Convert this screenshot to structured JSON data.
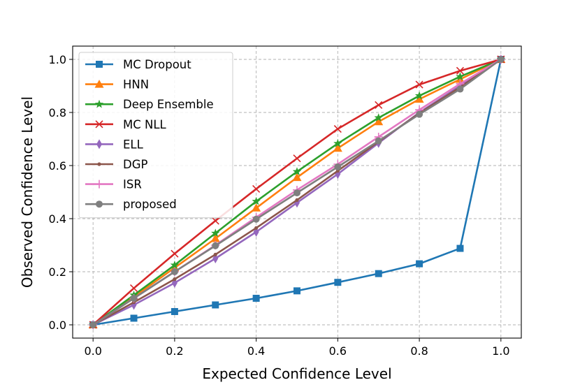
{
  "chart_data": {
    "type": "line",
    "title": "",
    "xlabel": "Expected Confidence Level",
    "ylabel": "Observed Confidence Level",
    "xlim": [
      -0.05,
      1.05
    ],
    "ylim": [
      -0.05,
      1.05
    ],
    "xticks": [
      0.0,
      0.2,
      0.4,
      0.6,
      0.8,
      1.0
    ],
    "xtick_labels": [
      "0.0",
      "0.2",
      "0.4",
      "0.6",
      "0.8",
      "1.0"
    ],
    "yticks": [
      0.0,
      0.2,
      0.4,
      0.6,
      0.8,
      1.0
    ],
    "ytick_labels": [
      "0.0",
      "0.2",
      "0.4",
      "0.6",
      "0.8",
      "1.0"
    ],
    "grid": true,
    "legend_position": "upper-left",
    "x": [
      0.0,
      0.1,
      0.2,
      0.3,
      0.4,
      0.5,
      0.6,
      0.7,
      0.8,
      0.9,
      1.0
    ],
    "series": [
      {
        "name": "MC Dropout",
        "color": "#1f77b4",
        "marker": "square",
        "values": [
          0.0,
          0.025,
          0.05,
          0.075,
          0.1,
          0.128,
          0.16,
          0.193,
          0.23,
          0.288,
          1.0
        ]
      },
      {
        "name": "HNN",
        "color": "#ff7f0e",
        "marker": "triangle",
        "values": [
          0.0,
          0.105,
          0.215,
          0.325,
          0.44,
          0.555,
          0.665,
          0.765,
          0.85,
          0.925,
          1.0
        ]
      },
      {
        "name": "Deep Ensemble",
        "color": "#2ca02c",
        "marker": "star",
        "values": [
          0.0,
          0.112,
          0.225,
          0.345,
          0.465,
          0.577,
          0.683,
          0.78,
          0.863,
          0.935,
          1.0
        ]
      },
      {
        "name": "MC NLL",
        "color": "#d62728",
        "marker": "x",
        "values": [
          0.0,
          0.138,
          0.268,
          0.392,
          0.512,
          0.627,
          0.738,
          0.828,
          0.905,
          0.957,
          1.0
        ]
      },
      {
        "name": "ELL",
        "color": "#9467bd",
        "marker": "thin_diamond",
        "values": [
          0.0,
          0.075,
          0.158,
          0.25,
          0.35,
          0.46,
          0.568,
          0.685,
          0.8,
          0.9,
          1.0
        ]
      },
      {
        "name": "DGP",
        "color": "#8c564b",
        "marker": "dot",
        "values": [
          0.0,
          0.085,
          0.172,
          0.265,
          0.365,
          0.47,
          0.58,
          0.69,
          0.797,
          0.895,
          1.0
        ]
      },
      {
        "name": "ISR",
        "color": "#e377c2",
        "marker": "plus",
        "values": [
          0.0,
          0.1,
          0.2,
          0.3,
          0.405,
          0.508,
          0.605,
          0.708,
          0.81,
          0.908,
          1.0
        ]
      },
      {
        "name": "proposed",
        "color": "#7f7f7f",
        "marker": "circle",
        "values": [
          0.0,
          0.1,
          0.2,
          0.298,
          0.398,
          0.497,
          0.595,
          0.693,
          0.793,
          0.888,
          1.0
        ]
      }
    ]
  }
}
